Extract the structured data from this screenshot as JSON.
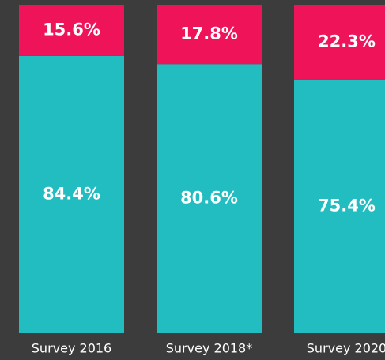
{
  "chart_data": {
    "type": "bar",
    "stacking": "percent",
    "categories": [
      "Survey 2016",
      "Survey 2018*",
      "Survey 2020"
    ],
    "series": [
      {
        "color": "#22bdc1",
        "values": [
          84.4,
          80.6,
          75.4
        ],
        "value_labels": [
          "84.4%",
          "80.6%",
          "75.4%"
        ]
      },
      {
        "color": "#ef1459",
        "values": [
          15.6,
          17.8,
          22.3
        ],
        "value_labels": [
          "15.6%",
          "17.8%",
          "22.3%"
        ]
      }
    ]
  }
}
